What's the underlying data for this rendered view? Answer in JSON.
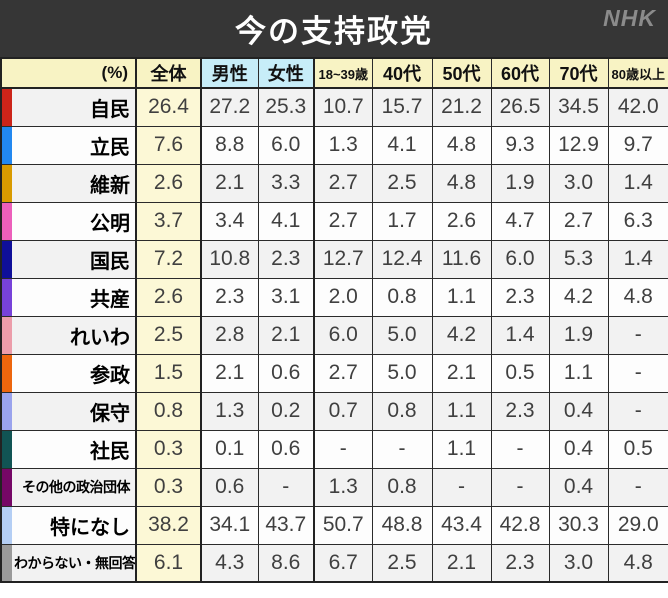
{
  "header": {
    "title": "今の支持政党",
    "logo": "NHK"
  },
  "colors": {
    "banner_bg": "#363636",
    "title_text": "#ffffff",
    "logo_text": "#8b8b8b",
    "header_yellow": "#f8f3c4",
    "header_cyan": "#c7edf8",
    "zentai_column_yellow": "#fcf8d6",
    "row_alt_gray": "#f2f2f2",
    "grid_border": "#2b2b2b",
    "value_text": "#404040"
  },
  "table": {
    "columns": [
      {
        "label": "(%)",
        "bg": "yellow",
        "small": false,
        "is_label_col": true
      },
      {
        "label": "全体",
        "bg": "yellow",
        "small": false
      },
      {
        "label": "男性",
        "bg": "cyan",
        "small": false
      },
      {
        "label": "女性",
        "bg": "cyan",
        "small": false
      },
      {
        "label": "18~39歳",
        "bg": "yellow",
        "small": true
      },
      {
        "label": "40代",
        "bg": "yellow",
        "small": false
      },
      {
        "label": "50代",
        "bg": "yellow",
        "small": false
      },
      {
        "label": "60代",
        "bg": "yellow",
        "small": false
      },
      {
        "label": "70代",
        "bg": "yellow",
        "small": false
      },
      {
        "label": "80歳以上",
        "bg": "yellow",
        "small": true
      }
    ],
    "rows": [
      {
        "party": "自民",
        "color": "#cc2419",
        "small": false,
        "values": [
          "26.4",
          "27.2",
          "25.3",
          "10.7",
          "15.7",
          "21.2",
          "26.5",
          "34.5",
          "42.0"
        ]
      },
      {
        "party": "立民",
        "color": "#2288f0",
        "small": false,
        "values": [
          "7.6",
          "8.8",
          "6.0",
          "1.3",
          "4.1",
          "4.8",
          "9.3",
          "12.9",
          "9.7"
        ]
      },
      {
        "party": "維新",
        "color": "#d99b00",
        "small": false,
        "values": [
          "2.6",
          "2.1",
          "3.3",
          "2.7",
          "2.5",
          "4.8",
          "1.9",
          "3.0",
          "1.4"
        ]
      },
      {
        "party": "公明",
        "color": "#ec5fbb",
        "small": false,
        "values": [
          "3.7",
          "3.4",
          "4.1",
          "2.7",
          "1.7",
          "2.6",
          "4.7",
          "2.7",
          "6.3"
        ]
      },
      {
        "party": "国民",
        "color": "#0f0f99",
        "small": false,
        "values": [
          "7.2",
          "10.8",
          "2.3",
          "12.7",
          "12.4",
          "11.6",
          "6.0",
          "5.3",
          "1.4"
        ]
      },
      {
        "party": "共産",
        "color": "#7742d9",
        "small": false,
        "values": [
          "2.6",
          "2.3",
          "3.1",
          "2.0",
          "0.8",
          "1.1",
          "2.3",
          "4.2",
          "4.8"
        ]
      },
      {
        "party": "れいわ",
        "color": "#ec9daa",
        "small": false,
        "values": [
          "2.5",
          "2.8",
          "2.1",
          "6.0",
          "5.0",
          "4.2",
          "1.4",
          "1.9",
          "-"
        ]
      },
      {
        "party": "参政",
        "color": "#ed660d",
        "small": false,
        "values": [
          "1.5",
          "2.1",
          "0.6",
          "2.7",
          "5.0",
          "2.1",
          "0.5",
          "1.1",
          "-"
        ]
      },
      {
        "party": "保守",
        "color": "#9aa3ed",
        "small": false,
        "values": [
          "0.8",
          "1.3",
          "0.2",
          "0.7",
          "0.8",
          "1.1",
          "2.3",
          "0.4",
          "-"
        ]
      },
      {
        "party": "社民",
        "color": "#115454",
        "small": false,
        "values": [
          "0.3",
          "0.1",
          "0.6",
          "-",
          "-",
          "1.1",
          "-",
          "0.4",
          "0.5"
        ]
      },
      {
        "party": "その他の政治団体",
        "color": "#750766",
        "small": true,
        "values": [
          "0.3",
          "0.6",
          "-",
          "1.3",
          "0.8",
          "-",
          "-",
          "0.4",
          "-"
        ]
      },
      {
        "party": "特になし",
        "color": "#b4cef4",
        "small": false,
        "values": [
          "38.2",
          "34.1",
          "43.7",
          "50.7",
          "48.8",
          "43.4",
          "42.8",
          "30.3",
          "29.0"
        ]
      },
      {
        "party": "わからない・無回答",
        "color": "#9a9a9a",
        "small": true,
        "values": [
          "6.1",
          "4.3",
          "8.6",
          "6.7",
          "2.5",
          "2.1",
          "2.3",
          "3.0",
          "4.8"
        ]
      }
    ]
  },
  "chart_data": {
    "type": "table",
    "title": "今の支持政党",
    "unit": "%",
    "columns": [
      "全体",
      "男性",
      "女性",
      "18~39歳",
      "40代",
      "50代",
      "60代",
      "70代",
      "80歳以上"
    ],
    "rows": [
      {
        "label": "自民",
        "values": [
          26.4,
          27.2,
          25.3,
          10.7,
          15.7,
          21.2,
          26.5,
          34.5,
          42.0
        ]
      },
      {
        "label": "立民",
        "values": [
          7.6,
          8.8,
          6.0,
          1.3,
          4.1,
          4.8,
          9.3,
          12.9,
          9.7
        ]
      },
      {
        "label": "維新",
        "values": [
          2.6,
          2.1,
          3.3,
          2.7,
          2.5,
          4.8,
          1.9,
          3.0,
          1.4
        ]
      },
      {
        "label": "公明",
        "values": [
          3.7,
          3.4,
          4.1,
          2.7,
          1.7,
          2.6,
          4.7,
          2.7,
          6.3
        ]
      },
      {
        "label": "国民",
        "values": [
          7.2,
          10.8,
          2.3,
          12.7,
          12.4,
          11.6,
          6.0,
          5.3,
          1.4
        ]
      },
      {
        "label": "共産",
        "values": [
          2.6,
          2.3,
          3.1,
          2.0,
          0.8,
          1.1,
          2.3,
          4.2,
          4.8
        ]
      },
      {
        "label": "れいわ",
        "values": [
          2.5,
          2.8,
          2.1,
          6.0,
          5.0,
          4.2,
          1.4,
          1.9,
          null
        ]
      },
      {
        "label": "参政",
        "values": [
          1.5,
          2.1,
          0.6,
          2.7,
          5.0,
          2.1,
          0.5,
          1.1,
          null
        ]
      },
      {
        "label": "保守",
        "values": [
          0.8,
          1.3,
          0.2,
          0.7,
          0.8,
          1.1,
          2.3,
          0.4,
          null
        ]
      },
      {
        "label": "社民",
        "values": [
          0.3,
          0.1,
          0.6,
          null,
          null,
          1.1,
          null,
          0.4,
          0.5
        ]
      },
      {
        "label": "その他の政治団体",
        "values": [
          0.3,
          0.6,
          null,
          1.3,
          0.8,
          null,
          null,
          0.4,
          null
        ]
      },
      {
        "label": "特になし",
        "values": [
          38.2,
          34.1,
          43.7,
          50.7,
          48.8,
          43.4,
          42.8,
          30.3,
          29.0
        ]
      },
      {
        "label": "わからない・無回答",
        "values": [
          6.1,
          4.3,
          8.6,
          6.7,
          2.5,
          2.1,
          2.3,
          3.0,
          4.8
        ]
      }
    ]
  }
}
